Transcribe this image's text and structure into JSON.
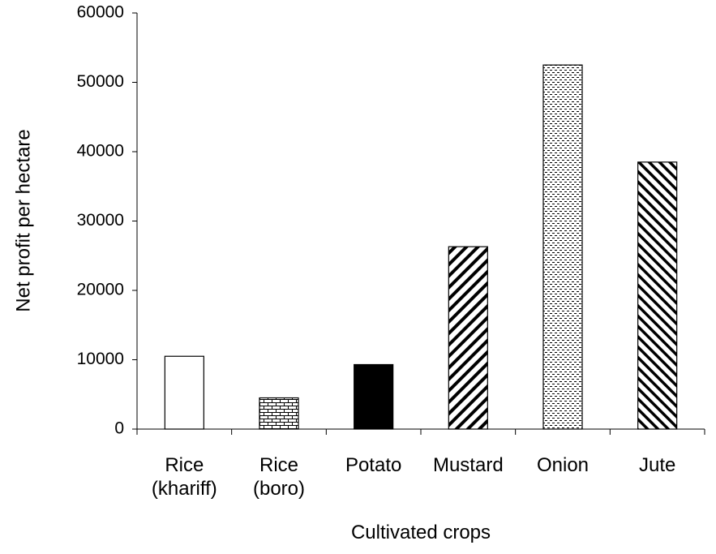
{
  "chart_data": {
    "type": "bar",
    "x_label": "Cultivated crops",
    "y_label": "Net profit per hectare",
    "categories": [
      "Rice (khariff)",
      "Rice (boro)",
      "Potato",
      "Mustard",
      "Onion",
      "Jute"
    ],
    "values": [
      10500,
      4500,
      9300,
      26300,
      52500,
      38500
    ],
    "ylim": [
      0,
      60000
    ],
    "yticks": [
      0,
      10000,
      20000,
      30000,
      40000,
      50000,
      60000
    ]
  }
}
